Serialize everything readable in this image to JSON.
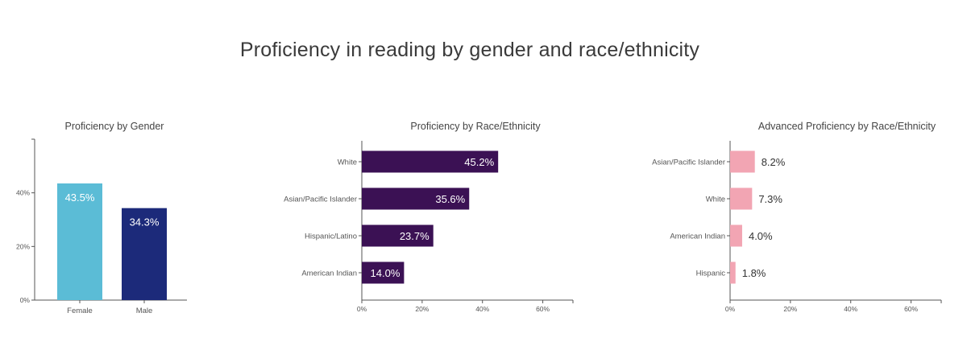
{
  "title": "Proficiency in reading by gender and race/ethnicity",
  "chart_data": [
    {
      "type": "bar",
      "orientation": "vertical",
      "title": "Proficiency by Gender",
      "categories": [
        "Female",
        "Male"
      ],
      "values": [
        43.5,
        34.3
      ],
      "value_labels": [
        "43.5%",
        "34.3%"
      ],
      "colors": [
        "#5bbcd6",
        "#1c2a7a"
      ],
      "ylim": [
        0,
        60
      ],
      "yticks": [
        0,
        20,
        40
      ],
      "ytick_labels": [
        "0%",
        "20%",
        "40%"
      ],
      "value_label_position": "inside",
      "grid": false
    },
    {
      "type": "bar",
      "orientation": "horizontal",
      "title": "Proficiency by Race/Ethnicity",
      "categories": [
        "White",
        "Asian/Pacific Islander",
        "Hispanic/Latino",
        "American Indian"
      ],
      "values": [
        45.2,
        35.6,
        23.7,
        14.0
      ],
      "value_labels": [
        "45.2%",
        "35.6%",
        "23.7%",
        "14.0%"
      ],
      "color": "#3b1154",
      "xlim": [
        0,
        70
      ],
      "xticks": [
        0,
        20,
        40,
        60
      ],
      "xtick_labels": [
        "0%",
        "20%",
        "40%",
        "60%"
      ],
      "value_label_position": "inside",
      "grid": false
    },
    {
      "type": "bar",
      "orientation": "horizontal",
      "title": "Advanced Proficiency by Race/Ethnicity",
      "categories": [
        "Asian/Pacific Islander",
        "White",
        "American Indian",
        "Hispanic"
      ],
      "values": [
        8.2,
        7.3,
        4.0,
        1.8
      ],
      "value_labels": [
        "8.2%",
        "7.3%",
        "4.0%",
        "1.8%"
      ],
      "color": "#f2a5b3",
      "xlim": [
        0,
        70
      ],
      "xticks": [
        0,
        20,
        40,
        60
      ],
      "xtick_labels": [
        "0%",
        "20%",
        "40%",
        "60%"
      ],
      "value_label_position": "outside",
      "grid": false
    }
  ]
}
